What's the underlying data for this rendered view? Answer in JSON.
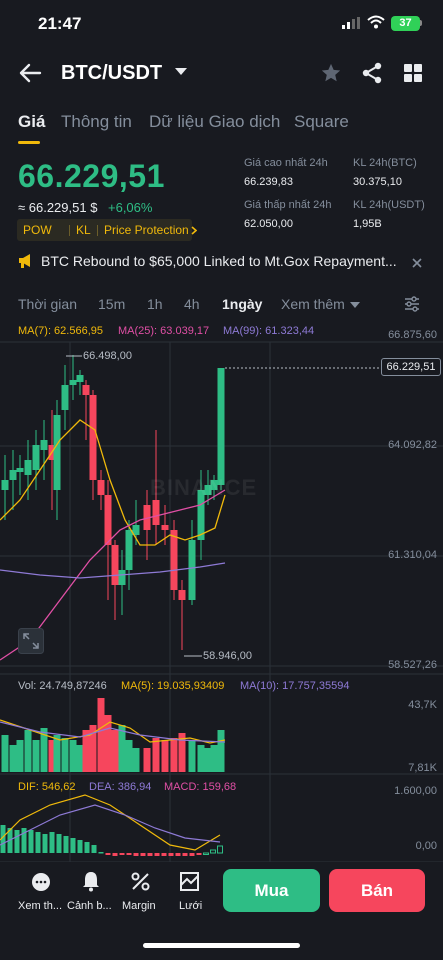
{
  "status_bar": {
    "time": "21:47",
    "battery": "37"
  },
  "header": {
    "pair": "BTC/USDT"
  },
  "tabs": [
    {
      "label": "Giá",
      "active": true
    },
    {
      "label": "Thông tin",
      "active": false
    },
    {
      "label": "Dữ liệu Giao dịch",
      "active": false
    },
    {
      "label": "Square",
      "active": false
    }
  ],
  "price": {
    "last": "66.229,51",
    "fiat": "≈ 66.229,51 $",
    "change": "+6,06%",
    "tags": [
      "POW",
      "KL",
      "Price Protection"
    ]
  },
  "stats": {
    "high_label": "Giá cao nhất 24h",
    "high_value": "66.239,83",
    "vol_btc_label": "KL 24h(BTC)",
    "vol_btc_value": "30.375,10",
    "low_label": "Giá thấp nhất 24h",
    "low_value": "62.050,00",
    "vol_usdt_label": "KL 24h(USDT)",
    "vol_usdt_value": "1,95B"
  },
  "news": {
    "text": "BTC Rebound to $65,000 Linked to Mt.Gox Repayment..."
  },
  "intervals": [
    {
      "label": "Thời gian",
      "active": false
    },
    {
      "label": "15m",
      "active": false
    },
    {
      "label": "1h",
      "active": false
    },
    {
      "label": "4h",
      "active": false
    },
    {
      "label": "1ngày",
      "active": true
    },
    {
      "label": "Xem thêm",
      "active": false
    }
  ],
  "ma": {
    "ma7": "MA(7): 62.566,95",
    "ma25": "MA(25): 63.039,17",
    "ma99": "MA(99): 61.323,44"
  },
  "price_axis": [
    "66.875,60",
    "64.092,82",
    "61.310,04",
    "58.527,26"
  ],
  "last_price_tag": "66.229,51",
  "high_marker": "66.498,00",
  "low_marker": "58.946,00",
  "watermark": "BINANCE",
  "volume": {
    "vol": "Vol: 24.749,87246",
    "ma5": "MA(5): 19.035,93409",
    "ma10": "MA(10): 17.757,35594",
    "axis_top": "43,7K",
    "axis_bottom": "7,81K"
  },
  "macd": {
    "dif": "DIF: 546,62",
    "dea": "DEA: 386,94",
    "macd": "MACD: 159,68",
    "axis_top": "1.600,00",
    "axis_bottom": "0,00"
  },
  "bottom_nav": [
    {
      "label": "Xem th...",
      "icon": "chat-dots-icon"
    },
    {
      "label": "Cảnh b...",
      "icon": "bell-icon"
    },
    {
      "label": "Margin",
      "icon": "percent-icon"
    },
    {
      "label": "Lưới",
      "icon": "grid-chart-icon"
    }
  ],
  "actions": {
    "buy": "Mua",
    "sell": "Bán"
  },
  "colors": {
    "up": "#2ebd85",
    "down": "#f6465d",
    "ma7": "#f0b90b",
    "ma25": "#e04fa5",
    "ma99": "#8e7ad6",
    "accent": "#f0b90b"
  }
}
